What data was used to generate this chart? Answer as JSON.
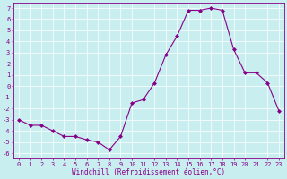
{
  "x": [
    0,
    1,
    2,
    3,
    4,
    5,
    6,
    7,
    8,
    9,
    10,
    11,
    12,
    13,
    14,
    15,
    16,
    17,
    18,
    19,
    20,
    21,
    22,
    23
  ],
  "y": [
    -3,
    -3.5,
    -3.5,
    -4,
    -4.5,
    -4.5,
    -4.8,
    -5,
    -5.7,
    -4.5,
    -1.5,
    -1.2,
    0.3,
    2.8,
    4.5,
    6.8,
    6.8,
    7.0,
    6.8,
    3.3,
    1.2,
    1.2,
    0.3,
    -2.2
  ],
  "color": "#880088",
  "bg_color": "#c8eef0",
  "xlabel": "Windchill (Refroidissement éolien,°C)",
  "xlim": [
    -0.5,
    23.5
  ],
  "ylim": [
    -6.5,
    7.5
  ],
  "yticks": [
    -6,
    -5,
    -4,
    -3,
    -2,
    -1,
    0,
    1,
    2,
    3,
    4,
    5,
    6,
    7
  ],
  "xticks": [
    0,
    1,
    2,
    3,
    4,
    5,
    6,
    7,
    8,
    9,
    10,
    11,
    12,
    13,
    14,
    15,
    16,
    17,
    18,
    19,
    20,
    21,
    22,
    23
  ],
  "xtick_labels": [
    "0",
    "1",
    "2",
    "3",
    "4",
    "5",
    "6",
    "7",
    "8",
    "9",
    "10",
    "11",
    "12",
    "13",
    "14",
    "15",
    "16",
    "17",
    "18",
    "19",
    "20",
    "21",
    "22",
    "23"
  ],
  "marker": "D",
  "markersize": 2.0,
  "linewidth": 0.8,
  "grid_color": "#ffffff",
  "grid_linewidth": 0.5,
  "xlabel_fontsize": 5.5,
  "tick_fontsize": 5.0,
  "spine_linewidth": 0.6
}
